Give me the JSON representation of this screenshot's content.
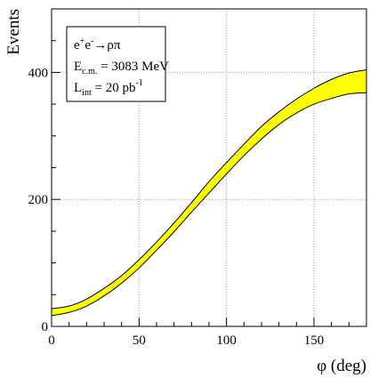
{
  "chart_data": {
    "type": "area",
    "title": "",
    "xlabel": "φ (deg)",
    "ylabel": "Events",
    "xlim": [
      0,
      180
    ],
    "ylim": [
      0,
      500
    ],
    "grid": true,
    "x_ticks": [
      0,
      50,
      100,
      150
    ],
    "y_ticks": [
      0,
      200,
      400
    ],
    "legend_position": "top-left",
    "band_color": "#ffff00",
    "legend": {
      "reaction": {
        "e1": "e",
        "e1_sup": "+",
        "e2": "e",
        "e2_sup": "-",
        "arrow": "→",
        "final": "ρπ"
      },
      "energy": {
        "main": "E",
        "sub": "c.m.",
        "value": " = 3083 MeV"
      },
      "lumi": {
        "main": "L",
        "sub": "int",
        "value": " = 20 pb",
        "sup": "-1"
      }
    },
    "series": [
      {
        "x": [
          0,
          10,
          20,
          30,
          40,
          50,
          60,
          70,
          80,
          90,
          100,
          110,
          120,
          130,
          140,
          150,
          160,
          170,
          180
        ],
        "upper": [
          28,
          32,
          43,
          60,
          80,
          105,
          133,
          163,
          195,
          228,
          258,
          287,
          315,
          338,
          358,
          375,
          389,
          399,
          404
        ],
        "lower": [
          17,
          22,
          32,
          48,
          68,
          92,
          120,
          149,
          180,
          210,
          240,
          269,
          295,
          318,
          336,
          350,
          359,
          366,
          368
        ]
      }
    ]
  }
}
